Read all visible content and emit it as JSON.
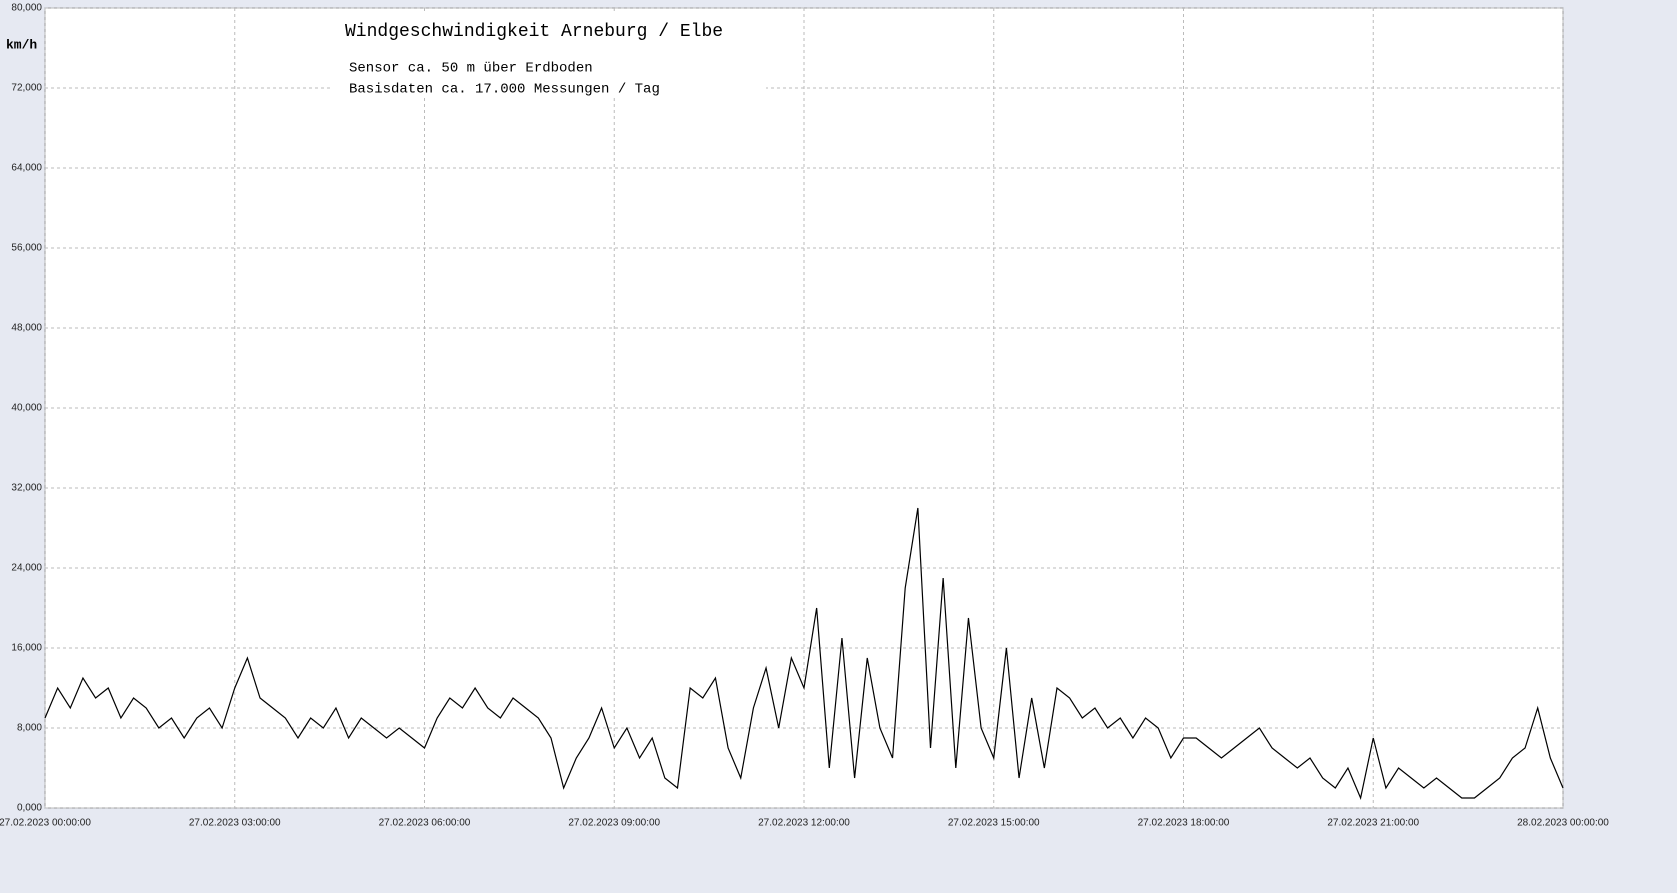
{
  "chart_data": {
    "type": "line",
    "title": "Windgeschwindigkeit  Arneburg / Elbe",
    "subtitle": [
      "Sensor ca. 50 m über Erdboden",
      "Basisdaten ca. 17.000 Messungen / Tag"
    ],
    "y_label": "km/h",
    "x": [
      0,
      0.2,
      0.4,
      0.6,
      0.8,
      1,
      1.2,
      1.4,
      1.6,
      1.8,
      2,
      2.2,
      2.4,
      2.6,
      2.8,
      3,
      3.2,
      3.4,
      3.6,
      3.8,
      4,
      4.2,
      4.4,
      4.6,
      4.8,
      5,
      5.2,
      5.4,
      5.6,
      5.8,
      6,
      6.2,
      6.4,
      6.6,
      6.8,
      7,
      7.2,
      7.4,
      7.6,
      7.8,
      8,
      8.2,
      8.4,
      8.6,
      8.8,
      9,
      9.2,
      9.4,
      9.6,
      9.8,
      10,
      10.2,
      10.4,
      10.6,
      10.8,
      11,
      11.2,
      11.4,
      11.6,
      11.8,
      12,
      12.2,
      12.4,
      12.6,
      12.8,
      13,
      13.2,
      13.4,
      13.6,
      13.8,
      14,
      14.2,
      14.4,
      14.6,
      14.8,
      15,
      15.2,
      15.4,
      15.6,
      15.8,
      16,
      16.2,
      16.4,
      16.6,
      16.8,
      17,
      17.2,
      17.4,
      17.6,
      17.8,
      18,
      18.2,
      18.4,
      18.6,
      18.8,
      19,
      19.2,
      19.4,
      19.6,
      19.8,
      20,
      20.2,
      20.4,
      20.6,
      20.8,
      21,
      21.2,
      21.4,
      21.6,
      21.8,
      22,
      22.2,
      22.4,
      22.6,
      22.8,
      23,
      23.2,
      23.4,
      23.6,
      23.8,
      24
    ],
    "series": [
      {
        "color": "#000000",
        "values": [
          9,
          12,
          10,
          13,
          11,
          12,
          9,
          11,
          10,
          8,
          9,
          7,
          9,
          10,
          8,
          12,
          15,
          11,
          10,
          9,
          7,
          9,
          8,
          10,
          7,
          9,
          8,
          7,
          8,
          7,
          6,
          9,
          11,
          10,
          12,
          10,
          9,
          11,
          10,
          9,
          7,
          2,
          5,
          7,
          10,
          6,
          8,
          5,
          7,
          3,
          2,
          12,
          11,
          13,
          6,
          3,
          10,
          14,
          8,
          15,
          12,
          20,
          4,
          17,
          3,
          15,
          8,
          5,
          22,
          30,
          6,
          23,
          4,
          19,
          8,
          5,
          16,
          3,
          11,
          4,
          12,
          11,
          9,
          10,
          8,
          9,
          7,
          9,
          8,
          5,
          7,
          7,
          6,
          5,
          6,
          7,
          8,
          6,
          5,
          4,
          5,
          3,
          2,
          4,
          1,
          7,
          2,
          4,
          3,
          2,
          3,
          2,
          1,
          1,
          2,
          3,
          5,
          6,
          10,
          5,
          2
        ]
      }
    ],
    "xlim": [
      0,
      24
    ],
    "xticks": [
      {
        "value": 0,
        "label": "27.02.2023  00:00:00"
      },
      {
        "value": 3,
        "label": "27.02.2023  03:00:00"
      },
      {
        "value": 6,
        "label": "27.02.2023  06:00:00"
      },
      {
        "value": 9,
        "label": "27.02.2023  09:00:00"
      },
      {
        "value": 12,
        "label": "27.02.2023  12:00:00"
      },
      {
        "value": 15,
        "label": "27.02.2023  15:00:00"
      },
      {
        "value": 18,
        "label": "27.02.2023  18:00:00"
      },
      {
        "value": 21,
        "label": "27.02.2023  21:00:00"
      },
      {
        "value": 24,
        "label": "28.02.2023  00:00:00"
      }
    ],
    "ylim": [
      0,
      80
    ],
    "yticks": [
      {
        "value": 0,
        "label": "0,000"
      },
      {
        "value": 8,
        "label": "8,000"
      },
      {
        "value": 16,
        "label": "16,000"
      },
      {
        "value": 24,
        "label": "24,000"
      },
      {
        "value": 32,
        "label": "32,000"
      },
      {
        "value": 40,
        "label": "40,000"
      },
      {
        "value": 48,
        "label": "48,000"
      },
      {
        "value": 56,
        "label": "56,000"
      },
      {
        "value": 64,
        "label": "64,000"
      },
      {
        "value": 72,
        "label": "72,000"
      },
      {
        "value": 80,
        "label": "80,000"
      }
    ],
    "grid": true
  }
}
